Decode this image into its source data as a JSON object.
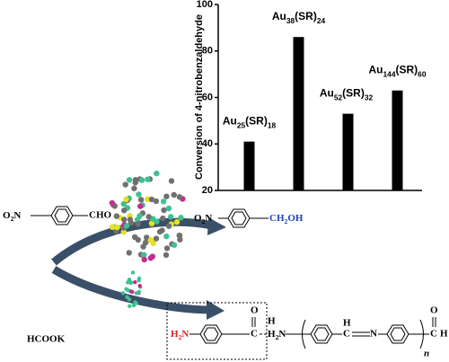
{
  "chart_data": {
    "type": "bar",
    "y_label": "Conversion of 4-nitrobenzaldehyde",
    "categories": [
      "Au25(SR)18",
      "Au38(SR)24",
      "Au52(SR)32",
      "Au144(SR)60"
    ],
    "values": [
      41,
      86,
      53,
      63
    ],
    "color": "#000000",
    "ylim": [
      20,
      100
    ],
    "yticks": [
      20,
      40,
      60,
      80,
      100
    ]
  },
  "scheme": {
    "reactant": {
      "left": "O2N",
      "right": "CHO"
    },
    "product1": {
      "left": "O2N",
      "right": "CH2OH"
    },
    "reductant": "HCOOK",
    "product2": {
      "left": "H2N",
      "carbon": "C",
      "oxygen": "O",
      "hydrogen": "H"
    },
    "polymer": {
      "left": "H2N",
      "imine_c": "C",
      "imine_h": "H",
      "imine_n": "N",
      "end_c": "C",
      "end_o": "O",
      "end_h": "H",
      "n": "n"
    }
  }
}
